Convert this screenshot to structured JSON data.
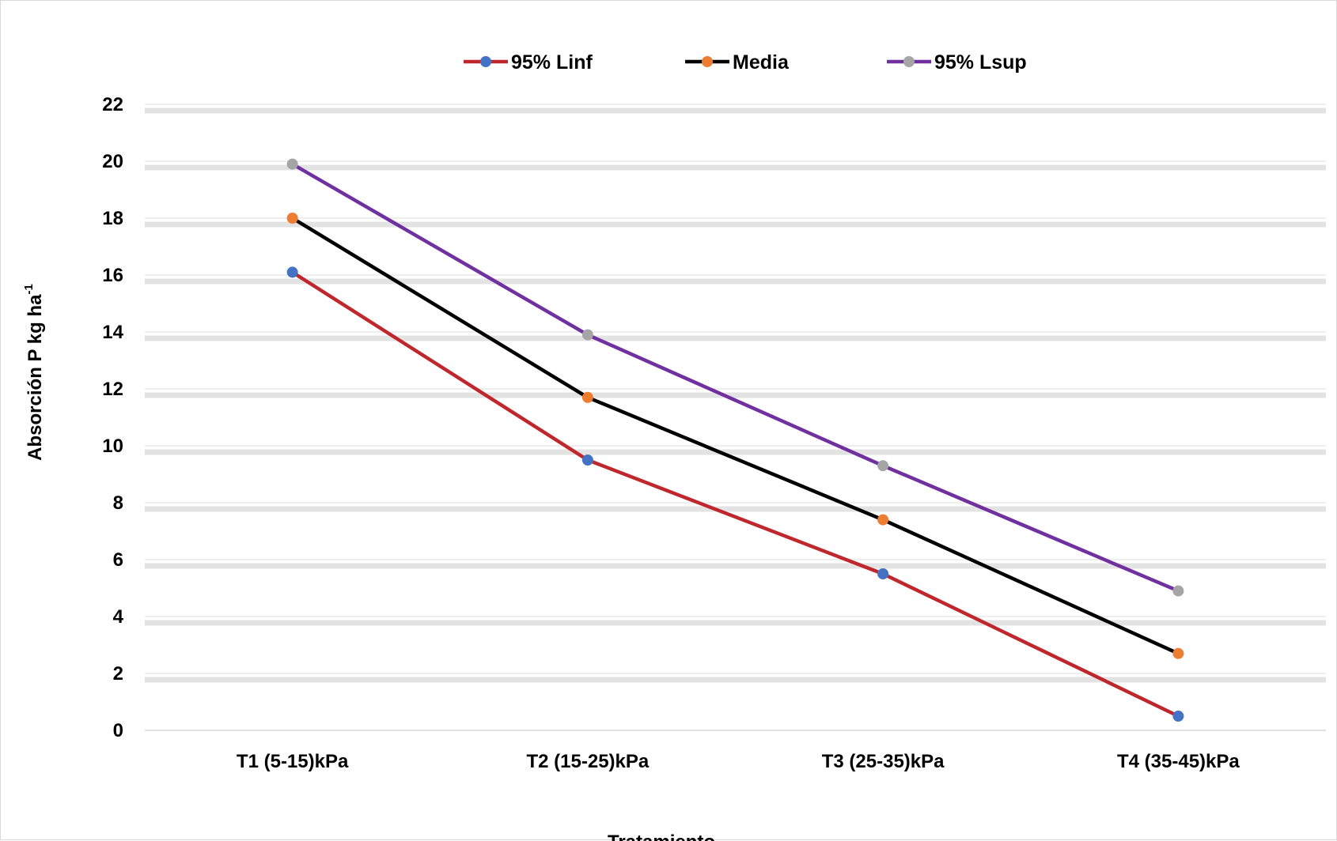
{
  "chart_data": {
    "type": "line",
    "title": "",
    "xlabel": "Tratamiento",
    "ylabel": "Absorción P kg ha",
    "ylabel_superscript": "-1",
    "categories": [
      "T1 (5-15)kPa",
      "T2 (15-25)kPa",
      "T3 (25-35)kPa",
      "T4 (35-45)kPa"
    ],
    "ylim": [
      0,
      22
    ],
    "yticks": [
      0,
      2,
      4,
      6,
      8,
      10,
      12,
      14,
      16,
      18,
      20,
      22
    ],
    "grid": true,
    "legend_position": "top-center",
    "series": [
      {
        "name": "95% Linf",
        "values": [
          16.1,
          9.5,
          5.5,
          0.5
        ],
        "line_color": "#c0272d",
        "marker_color": "#4472c4"
      },
      {
        "name": "Media",
        "values": [
          18.0,
          11.7,
          7.4,
          2.7
        ],
        "line_color": "#000000",
        "marker_color": "#ed7d31"
      },
      {
        "name": "95% Lsup",
        "values": [
          19.9,
          13.9,
          9.3,
          4.9
        ],
        "line_color": "#7030a0",
        "marker_color": "#a5a5a5"
      }
    ]
  }
}
